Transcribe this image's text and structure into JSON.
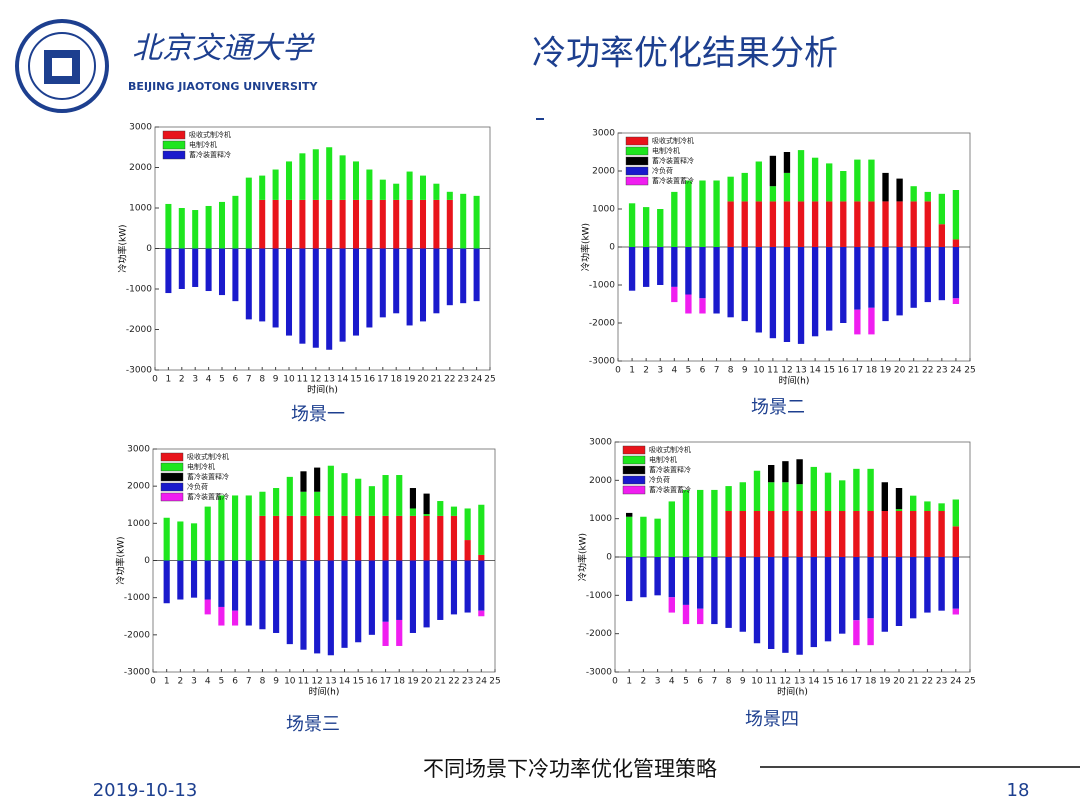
{
  "header": {
    "university_cn": "北京交通大学",
    "university_en": "BEIJING JIAOTONG UNIVERSITY",
    "title": "冷功率优化结果分析"
  },
  "footer": {
    "caption": "不同场景下冷功率优化管理策略",
    "date": "2019-10-13",
    "page": "18"
  },
  "chart_data": [
    {
      "type": "bar",
      "stacked": true,
      "caption": "场景一",
      "x_label": "时间(h)",
      "y_label": "冷功率(kW)",
      "x": [
        1,
        2,
        3,
        4,
        5,
        6,
        7,
        8,
        9,
        10,
        11,
        12,
        13,
        14,
        15,
        16,
        17,
        18,
        19,
        20,
        21,
        22,
        23,
        24
      ],
      "xlim": [
        0,
        25
      ],
      "xticks": [
        0,
        1,
        2,
        3,
        4,
        5,
        6,
        7,
        8,
        9,
        10,
        11,
        12,
        13,
        14,
        15,
        16,
        17,
        18,
        19,
        20,
        21,
        22,
        23,
        24,
        25
      ],
      "ylim": [
        -3000,
        3000
      ],
      "yticks": [
        -3000,
        -2000,
        -1000,
        0,
        1000,
        2000,
        3000
      ],
      "series": [
        {
          "name": "吸收式制冷机",
          "color": "#e8141b",
          "values": [
            0,
            0,
            0,
            0,
            0,
            0,
            0,
            1200,
            1200,
            1200,
            1200,
            1200,
            1200,
            1200,
            1200,
            1200,
            1200,
            1200,
            1200,
            1200,
            1200,
            1200,
            0,
            0
          ]
        },
        {
          "name": "电制冷机",
          "color": "#1ee61e",
          "values": [
            1100,
            1000,
            950,
            1050,
            1150,
            1300,
            1750,
            600,
            750,
            950,
            1150,
            1250,
            1300,
            1100,
            950,
            750,
            500,
            400,
            700,
            600,
            400,
            200,
            1350,
            1300
          ]
        },
        {
          "name": "蓄冷装置释冷",
          "color": "#1a1acc",
          "values": [
            -1100,
            -1000,
            -950,
            -1050,
            -1150,
            -1300,
            -1750,
            -1800,
            -1950,
            -2150,
            -2350,
            -2450,
            -2500,
            -2300,
            -2150,
            -1950,
            -1700,
            -1600,
            -1900,
            -1800,
            -1600,
            -1400,
            -1350,
            -1300
          ]
        }
      ]
    },
    {
      "type": "bar",
      "stacked": true,
      "caption": "场景二",
      "x_label": "时间(h)",
      "y_label": "冷功率(kW)",
      "x": [
        1,
        2,
        3,
        4,
        5,
        6,
        7,
        8,
        9,
        10,
        11,
        12,
        13,
        14,
        15,
        16,
        17,
        18,
        19,
        20,
        21,
        22,
        23,
        24
      ],
      "xlim": [
        0,
        25
      ],
      "xticks": [
        0,
        1,
        2,
        3,
        4,
        5,
        6,
        7,
        8,
        9,
        10,
        11,
        12,
        13,
        14,
        15,
        16,
        17,
        18,
        19,
        20,
        21,
        22,
        23,
        24,
        25
      ],
      "ylim": [
        -3000,
        3000
      ],
      "yticks": [
        -3000,
        -2000,
        -1000,
        0,
        1000,
        2000,
        3000
      ],
      "series": [
        {
          "name": "吸收式制冷机",
          "color": "#e8141b",
          "values": [
            0,
            0,
            0,
            0,
            0,
            0,
            0,
            1200,
            1200,
            1200,
            1200,
            1200,
            1200,
            1200,
            1200,
            1200,
            1200,
            1200,
            1200,
            1200,
            1200,
            1200,
            600,
            200
          ]
        },
        {
          "name": "电制冷机",
          "color": "#1ee61e",
          "values": [
            1150,
            1050,
            1000,
            1450,
            1750,
            1750,
            1750,
            650,
            750,
            1050,
            400,
            750,
            1350,
            1150,
            1000,
            800,
            1100,
            1100,
            0,
            0,
            400,
            250,
            800,
            1300
          ]
        },
        {
          "name": "蓄冷装置释冷",
          "color": "#000000",
          "values": [
            0,
            0,
            0,
            0,
            0,
            0,
            0,
            0,
            0,
            0,
            800,
            550,
            0,
            0,
            0,
            0,
            0,
            0,
            750,
            600,
            0,
            0,
            0,
            0
          ]
        },
        {
          "name": "冷负荷",
          "color": "#1a1acc",
          "values": [
            -1150,
            -1050,
            -1000,
            -1050,
            -1250,
            -1350,
            -1750,
            -1850,
            -1950,
            -2250,
            -2400,
            -2500,
            -2550,
            -2350,
            -2200,
            -2000,
            -1650,
            -1600,
            -1950,
            -1800,
            -1600,
            -1450,
            -1400,
            -1350
          ]
        },
        {
          "name": "蓄冷装置蓄冷",
          "color": "#f01ef0",
          "values": [
            0,
            0,
            0,
            -400,
            -500,
            -400,
            0,
            0,
            0,
            0,
            0,
            0,
            0,
            0,
            0,
            0,
            -650,
            -700,
            0,
            0,
            0,
            0,
            0,
            -150
          ]
        }
      ]
    },
    {
      "type": "bar",
      "stacked": true,
      "caption": "场景三",
      "x_label": "时间(h)",
      "y_label": "冷功率(kW)",
      "x": [
        1,
        2,
        3,
        4,
        5,
        6,
        7,
        8,
        9,
        10,
        11,
        12,
        13,
        14,
        15,
        16,
        17,
        18,
        19,
        20,
        21,
        22,
        23,
        24
      ],
      "xlim": [
        0,
        25
      ],
      "xticks": [
        0,
        1,
        2,
        3,
        4,
        5,
        6,
        7,
        8,
        9,
        10,
        11,
        12,
        13,
        14,
        15,
        16,
        17,
        18,
        19,
        20,
        21,
        22,
        23,
        24,
        25
      ],
      "ylim": [
        -3000,
        3000
      ],
      "yticks": [
        -3000,
        -2000,
        -1000,
        0,
        1000,
        2000,
        3000
      ],
      "series": [
        {
          "name": "吸收式制冷机",
          "color": "#e8141b",
          "values": [
            0,
            0,
            0,
            0,
            0,
            0,
            0,
            1200,
            1200,
            1200,
            1200,
            1200,
            1200,
            1200,
            1200,
            1200,
            1200,
            1200,
            1200,
            1200,
            1200,
            1200,
            550,
            150
          ]
        },
        {
          "name": "电制冷机",
          "color": "#1ee61e",
          "values": [
            1150,
            1050,
            1000,
            1450,
            1750,
            1750,
            1750,
            650,
            750,
            1050,
            650,
            650,
            1350,
            1150,
            1000,
            800,
            1100,
            1100,
            200,
            50,
            400,
            250,
            850,
            1350
          ]
        },
        {
          "name": "蓄冷装置释冷",
          "color": "#000000",
          "values": [
            0,
            0,
            0,
            0,
            0,
            0,
            0,
            0,
            0,
            0,
            550,
            650,
            0,
            0,
            0,
            0,
            0,
            0,
            550,
            550,
            0,
            0,
            0,
            0
          ]
        },
        {
          "name": "冷负荷",
          "color": "#1a1acc",
          "values": [
            -1150,
            -1050,
            -1000,
            -1050,
            -1250,
            -1350,
            -1750,
            -1850,
            -1950,
            -2250,
            -2400,
            -2500,
            -2550,
            -2350,
            -2200,
            -2000,
            -1650,
            -1600,
            -1950,
            -1800,
            -1600,
            -1450,
            -1400,
            -1350
          ]
        },
        {
          "name": "蓄冷装置蓄冷",
          "color": "#f01ef0",
          "values": [
            0,
            0,
            0,
            -400,
            -500,
            -400,
            0,
            0,
            0,
            0,
            0,
            0,
            0,
            0,
            0,
            0,
            -650,
            -700,
            0,
            0,
            0,
            0,
            0,
            -150
          ]
        }
      ]
    },
    {
      "type": "bar",
      "stacked": true,
      "caption": "场景四",
      "x_label": "时间(h)",
      "y_label": "冷功率(kW)",
      "x": [
        1,
        2,
        3,
        4,
        5,
        6,
        7,
        8,
        9,
        10,
        11,
        12,
        13,
        14,
        15,
        16,
        17,
        18,
        19,
        20,
        21,
        22,
        23,
        24
      ],
      "xlim": [
        0,
        25
      ],
      "xticks": [
        0,
        1,
        2,
        3,
        4,
        5,
        6,
        7,
        8,
        9,
        10,
        11,
        12,
        13,
        14,
        15,
        16,
        17,
        18,
        19,
        20,
        21,
        22,
        23,
        24,
        25
      ],
      "ylim": [
        -3000,
        3000
      ],
      "yticks": [
        -3000,
        -2000,
        -1000,
        0,
        1000,
        2000,
        3000
      ],
      "series": [
        {
          "name": "吸收式制冷机",
          "color": "#e8141b",
          "values": [
            0,
            0,
            0,
            0,
            0,
            0,
            0,
            1200,
            1200,
            1200,
            1200,
            1200,
            1200,
            1200,
            1200,
            1200,
            1200,
            1200,
            1200,
            1200,
            1200,
            1200,
            1200,
            800
          ]
        },
        {
          "name": "电制冷机",
          "color": "#1ee61e",
          "values": [
            1050,
            1050,
            1000,
            1450,
            1750,
            1750,
            1750,
            650,
            750,
            1050,
            750,
            750,
            700,
            1150,
            1000,
            800,
            1100,
            1100,
            0,
            50,
            400,
            250,
            200,
            700
          ]
        },
        {
          "name": "蓄冷装置释冷",
          "color": "#000000",
          "values": [
            100,
            0,
            0,
            0,
            0,
            0,
            0,
            0,
            0,
            0,
            450,
            550,
            650,
            0,
            0,
            0,
            0,
            0,
            750,
            550,
            0,
            0,
            0,
            0
          ]
        },
        {
          "name": "冷负荷",
          "color": "#1a1acc",
          "values": [
            -1150,
            -1050,
            -1000,
            -1050,
            -1250,
            -1350,
            -1750,
            -1850,
            -1950,
            -2250,
            -2400,
            -2500,
            -2550,
            -2350,
            -2200,
            -2000,
            -1650,
            -1600,
            -1950,
            -1800,
            -1600,
            -1450,
            -1400,
            -1350
          ]
        },
        {
          "name": "蓄冷装置蓄冷",
          "color": "#f01ef0",
          "values": [
            0,
            0,
            0,
            -400,
            -500,
            -400,
            0,
            0,
            0,
            0,
            0,
            0,
            0,
            0,
            0,
            0,
            -650,
            -700,
            0,
            0,
            0,
            0,
            0,
            -150
          ]
        }
      ]
    }
  ]
}
